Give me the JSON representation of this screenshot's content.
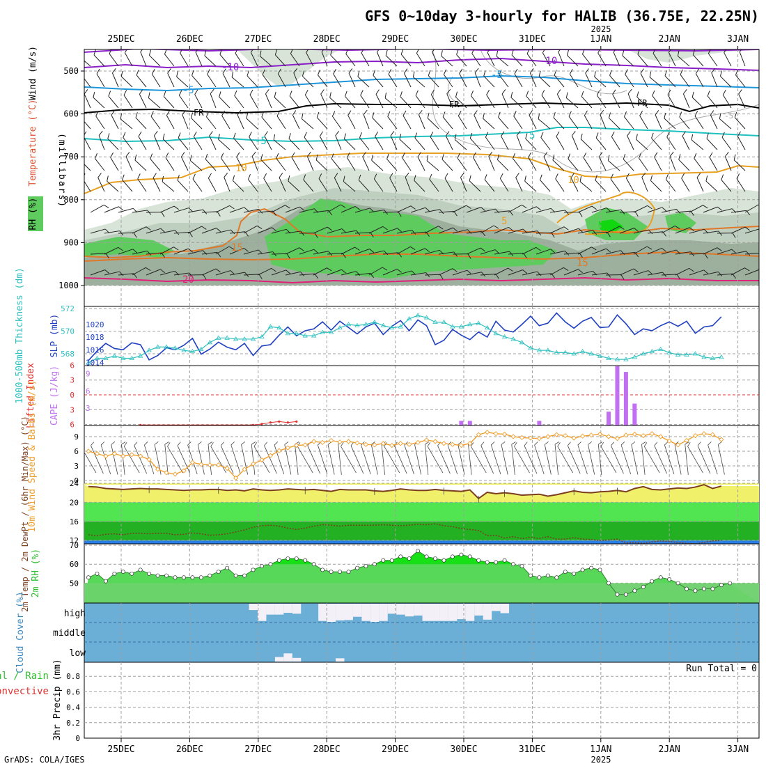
{
  "title": "GFS 0~10day 3-hourly for HALIB (36.75E, 22.25N)",
  "credit": "GrADS: COLA/IGES",
  "year_label": "2025",
  "dates": [
    "25DEC",
    "26DEC",
    "27DEC",
    "28DEC",
    "29DEC",
    "30DEC",
    "31DEC",
    "1JAN",
    "2JAN",
    "3JAN"
  ],
  "colors": {
    "frame": "#000000",
    "grid": "#a0a0a0",
    "wind": "#f0a030",
    "lifted": "#e03030",
    "cape": "#c070f0",
    "rh": "#30c030",
    "thick": "#30c0c0",
    "slp": "#2040c0",
    "cloud": "#6baed6",
    "dew": "#7b3f1f"
  },
  "chart_data": [
    {
      "type": "heatmap",
      "panel": "upper-air",
      "ylabel": "(millibars)",
      "side_labels": [
        "Wind (m/s)",
        "Temperature (°C)",
        "RH (%)"
      ],
      "yticks": [
        500,
        600,
        700,
        800,
        900,
        1000
      ],
      "contour_labels": [
        "-10",
        "-10",
        "-5",
        "-5",
        "FR",
        "FR",
        "FR",
        "-5",
        "5",
        "-5",
        "10",
        "10",
        "5",
        "15",
        "15",
        "20"
      ]
    },
    {
      "type": "line",
      "panel": "thickness-slp",
      "ylabel_left": "1000-500mb Thickness (dm)",
      "ylabel_right": "SLP (mb)",
      "yticks_left": [
        568,
        570,
        572
      ],
      "yticks_right": [
        1014,
        1016,
        1018,
        1020
      ],
      "series": [
        {
          "name": "SLP (mb)",
          "axis": "right",
          "values": [
            1014.3,
            1015.8,
            1017.0,
            1016.2,
            1016.0,
            1017.1,
            1016.8,
            1014.4,
            1015.1,
            1016.3,
            1016.0,
            1016.7,
            1017.8,
            1015.3,
            1016.1,
            1017.2,
            1016.4,
            1016.0,
            1017.0,
            1015.1,
            1016.6,
            1016.8,
            1018.3,
            1019.6,
            1018.2,
            1019.0,
            1019.3,
            1020.4,
            1019.1,
            1020.5,
            1019.5,
            1018.5,
            1019.6,
            1020.2,
            1018.4,
            1019.7,
            1020.6,
            1019.0,
            1020.7,
            1019.8,
            1016.8,
            1017.5,
            1019.2,
            1018.3,
            1017.6,
            1018.8,
            1018.0,
            1020.5,
            1019.1,
            1018.8,
            1020.0,
            1021.3,
            1019.8,
            1020.2,
            1021.8,
            1020.4,
            1019.4,
            1020.5,
            1021.1,
            1019.5,
            1019.6,
            1021.5,
            1020.1,
            1018.4,
            1019.3,
            1019.0,
            1019.8,
            1020.4,
            1019.7,
            1020.5,
            1018.6,
            1019.6,
            1019.8,
            1021.2
          ]
        },
        {
          "name": "1000-500mb Thickness (dm)",
          "axis": "left",
          "values": [
            567.2,
            567.6,
            567.6,
            567.8,
            567.6,
            567.6,
            567.8,
            568.3,
            568.6,
            568.6,
            568.5,
            568.3,
            568.2,
            568.4,
            569.0,
            569.4,
            569.4,
            569.3,
            569.3,
            569.3,
            569.5,
            570.4,
            570.3,
            569.8,
            569.8,
            569.6,
            569.6,
            569.9,
            569.9,
            570.3,
            570.6,
            570.5,
            570.6,
            570.8,
            570.5,
            570.3,
            570.4,
            571.1,
            571.4,
            571.2,
            570.8,
            570.8,
            570.4,
            570.4,
            570.6,
            570.7,
            570.3,
            569.8,
            569.5,
            569.3,
            569.0,
            568.5,
            568.3,
            568.3,
            568.1,
            568.1,
            568.0,
            568.2,
            568.0,
            567.8,
            567.6,
            567.5,
            567.5,
            567.7,
            568.0,
            568.2,
            568.4,
            568.1,
            567.9,
            567.9,
            568.0,
            567.7,
            567.6,
            567.7
          ]
        }
      ]
    },
    {
      "type": "bar",
      "panel": "cape-li",
      "ylabel_left": "Lifted Index",
      "ylabel_right": "CAPE (J/kg)",
      "yticks_left": [
        "-6",
        "-3",
        "0",
        "3",
        "6"
      ],
      "yticks_right": [
        3,
        6,
        9
      ],
      "series": [
        {
          "name": "CAPE (J/kg)",
          "points": [
            [
              43,
              0.8
            ],
            [
              44,
              0.8
            ],
            [
              52,
              0.8
            ],
            [
              60,
              2.4
            ],
            [
              61,
              10.3
            ],
            [
              62,
              9.3
            ],
            [
              63,
              3.8
            ]
          ]
        },
        {
          "name": "Lifted Index",
          "points": [
            [
              6,
              6.1
            ],
            [
              19,
              6.1
            ],
            [
              20,
              5.9
            ],
            [
              21,
              5.6
            ],
            [
              22,
              5.4
            ],
            [
              23,
              5.6
            ],
            [
              24,
              5.4
            ]
          ]
        }
      ]
    },
    {
      "type": "line",
      "panel": "wind-10m",
      "ylabel": "10m Wind Speed & Barbs (m/s)",
      "yticks": [
        0,
        3,
        6,
        9
      ],
      "series": [
        {
          "name": "10m Wind Speed",
          "values": [
            6.0,
            5.5,
            5.0,
            5.5,
            5.0,
            5.3,
            5.0,
            4.3,
            2.3,
            1.6,
            1.3,
            2.0,
            3.7,
            3.3,
            3.2,
            3.2,
            2.5,
            0.5,
            2.3,
            3.4,
            4.2,
            5.1,
            6.1,
            6.7,
            7.2,
            7.3,
            8.0,
            7.8,
            8.2,
            7.9,
            8.0,
            7.7,
            7.4,
            7.3,
            7.6,
            7.2,
            7.6,
            7.4,
            7.8,
            8.3,
            8.0,
            7.6,
            7.4,
            7.2,
            7.6,
            9.4,
            9.9,
            9.6,
            9.5,
            9.0,
            8.8,
            8.7,
            8.6,
            9.0,
            9.4,
            9.2,
            8.7,
            9.1,
            9.3,
            9.5,
            9.0,
            8.6,
            9.3,
            9.5,
            9.2,
            9.6,
            9.0,
            8.1,
            7.3,
            8.2,
            9.2,
            9.6,
            9.4,
            8.4
          ]
        }
      ]
    },
    {
      "type": "area",
      "panel": "temp-dewpt",
      "ylabel": "2m Temp / 2m DewPt / (6hr Min/Max) (°C)",
      "yticks": [
        12,
        16,
        20,
        24
      ],
      "series": [
        {
          "name": "2m Temp",
          "values": [
            23.3,
            23.2,
            22.9,
            22.8,
            22.7,
            22.8,
            22.9,
            22.8,
            22.8,
            22.7,
            22.6,
            22.5,
            22.6,
            22.6,
            22.7,
            22.7,
            22.5,
            22.6,
            22.4,
            22.8,
            22.6,
            22.5,
            22.6,
            22.8,
            22.7,
            22.6,
            22.7,
            22.5,
            22.3,
            22.7,
            22.6,
            22.6,
            22.6,
            22.4,
            22.3,
            22.5,
            22.8,
            22.6,
            22.5,
            22.5,
            22.7,
            22.5,
            22.4,
            22.3,
            22.6,
            20.8,
            22.1,
            21.8,
            22.0,
            21.8,
            21.5,
            21.6,
            21.7,
            21.3,
            21.6,
            22.0,
            22.4,
            22.1,
            22.0,
            22.2,
            22.3,
            22.5,
            22.2,
            22.9,
            23.3,
            22.7,
            22.6,
            22.8,
            23.0,
            22.9,
            23.2,
            23.7,
            22.9,
            23.4
          ]
        },
        {
          "name": "2m DewPt",
          "values": [
            13.2,
            13.0,
            13.3,
            13.4,
            13.2,
            13.5,
            13.5,
            13.4,
            13.5,
            13.5,
            13.2,
            13.3,
            13.6,
            13.4,
            13.1,
            13.2,
            13.4,
            13.8,
            14.2,
            14.8,
            15.1,
            15.2,
            15.0,
            14.6,
            14.3,
            14.6,
            15.0,
            15.3,
            15.2,
            15.0,
            15.2,
            15.2,
            15.2,
            15.2,
            15.3,
            15.2,
            15.1,
            15.2,
            15.4,
            15.3,
            15.5,
            15.1,
            14.9,
            14.5,
            14.3,
            14.1,
            13.0,
            13.1,
            12.5,
            12.8,
            12.4,
            12.7,
            12.4,
            12.8,
            12.3,
            12.3,
            12.6,
            12.3,
            12.2,
            12.0,
            12.1,
            12.3,
            11.5,
            11.6,
            11.4,
            11.7,
            11.9,
            11.8,
            11.6,
            11.4,
            11.3,
            11.6,
            11.9,
            12.0
          ]
        }
      ]
    },
    {
      "type": "area",
      "panel": "rh-2m",
      "ylabel": "2m RH (%)",
      "yticks": [
        50,
        60,
        70
      ],
      "series": [
        {
          "name": "2m RH",
          "values": [
            53,
            55,
            51,
            55,
            56,
            55,
            57,
            55,
            54,
            54,
            53,
            53,
            53,
            53,
            54,
            56,
            58,
            54,
            54,
            57,
            59,
            60,
            62,
            63,
            63,
            62,
            60,
            57,
            56,
            56,
            56,
            58,
            59,
            60,
            62,
            62,
            64,
            63,
            67,
            64,
            63,
            62,
            64,
            65,
            64,
            62,
            61,
            61,
            62,
            60,
            59,
            54,
            53,
            54,
            53,
            56,
            55,
            57,
            58,
            57,
            50,
            44,
            44,
            46,
            48,
            51,
            53,
            52,
            50,
            47,
            46,
            47,
            47,
            49,
            50
          ]
        }
      ]
    },
    {
      "type": "bar",
      "panel": "cloud-cover",
      "ylabel": "Cloud Cover (%)",
      "yticks": [
        "high",
        "middle",
        "low"
      ],
      "series": [
        {
          "name": "high",
          "points": [
            [
              19,
              0.35
            ],
            [
              20,
              0.95
            ],
            [
              21,
              0.6
            ],
            [
              22,
              0.6
            ],
            [
              23,
              0.5
            ],
            [
              24,
              0.55
            ],
            [
              27,
              0.95
            ],
            [
              28,
              1.0
            ],
            [
              29,
              0.92
            ],
            [
              30,
              0.9
            ],
            [
              31,
              0.72
            ],
            [
              32,
              0.95
            ],
            [
              33,
              1.0
            ],
            [
              34,
              0.95
            ],
            [
              35,
              0.55
            ],
            [
              36,
              0.6
            ],
            [
              37,
              0.7
            ],
            [
              38,
              0.65
            ],
            [
              39,
              0.95
            ],
            [
              40,
              0.95
            ],
            [
              41,
              0.95
            ],
            [
              42,
              0.95
            ],
            [
              43,
              0.85
            ],
            [
              44,
              0.95
            ],
            [
              45,
              0.65
            ],
            [
              46,
              0.88
            ],
            [
              47,
              0.4
            ],
            [
              48,
              0.52
            ]
          ]
        },
        {
          "name": "low",
          "points": [
            [
              22,
              0.25
            ],
            [
              23,
              0.45
            ],
            [
              24,
              0.2
            ],
            [
              29,
              0.18
            ]
          ]
        }
      ]
    },
    {
      "type": "bar",
      "panel": "precip",
      "ylabel": "3hr Precip (mm)",
      "side_labels": [
        "Total / Rain",
        "Convective"
      ],
      "yticks": [
        0,
        0.2,
        0.4,
        0.6,
        0.8
      ],
      "run_total": "Run Total = 0",
      "series": [
        {
          "name": "3hr Precip",
          "values": []
        }
      ]
    }
  ]
}
